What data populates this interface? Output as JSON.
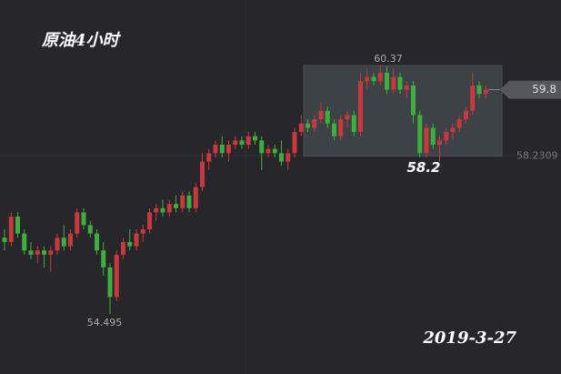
{
  "chart_data": {
    "type": "candlestick",
    "title": "原油4小时",
    "date": "2019-3-27",
    "up_color": "#c8383c",
    "down_color": "#3fae3f",
    "ylim": [
      53.08,
      61.92
    ],
    "high_label": 60.37,
    "low_label": 54.495,
    "box_low_label": 58.2,
    "range_low": 58.2309,
    "last_price": 59.8,
    "ohlc": [
      [
        56.3,
        56.5,
        56.0,
        56.2
      ],
      [
        56.2,
        56.9,
        56.1,
        56.8
      ],
      [
        56.8,
        56.9,
        56.3,
        56.4
      ],
      [
        56.4,
        56.5,
        55.9,
        56.0
      ],
      [
        56.0,
        56.2,
        55.8,
        55.9
      ],
      [
        55.9,
        56.1,
        55.7,
        56.0
      ],
      [
        56.0,
        56.1,
        55.6,
        55.9
      ],
      [
        55.9,
        56.1,
        55.5,
        56.0
      ],
      [
        56.0,
        56.4,
        55.9,
        56.3
      ],
      [
        56.3,
        56.6,
        56.0,
        56.1
      ],
      [
        56.1,
        56.5,
        56.0,
        56.4
      ],
      [
        56.4,
        57.0,
        56.3,
        56.9
      ],
      [
        56.9,
        57.0,
        56.5,
        56.6
      ],
      [
        56.6,
        56.7,
        56.3,
        56.4
      ],
      [
        56.4,
        56.5,
        55.9,
        56.0
      ],
      [
        56.0,
        56.2,
        55.4,
        55.6
      ],
      [
        55.6,
        55.7,
        54.495,
        54.9
      ],
      [
        54.9,
        56.0,
        54.8,
        55.9
      ],
      [
        55.9,
        56.3,
        55.8,
        56.2
      ],
      [
        56.2,
        56.5,
        56.0,
        56.1
      ],
      [
        56.1,
        56.5,
        56.0,
        56.4
      ],
      [
        56.4,
        56.6,
        56.2,
        56.5
      ],
      [
        56.5,
        57.0,
        56.4,
        56.9
      ],
      [
        56.9,
        57.1,
        56.7,
        57.0
      ],
      [
        57.0,
        57.2,
        56.8,
        56.9
      ],
      [
        56.9,
        57.2,
        56.8,
        57.1
      ],
      [
        57.1,
        57.3,
        56.9,
        57.0
      ],
      [
        57.0,
        57.4,
        56.9,
        57.3
      ],
      [
        57.3,
        57.4,
        56.9,
        57.0
      ],
      [
        57.0,
        57.6,
        56.9,
        57.5
      ],
      [
        57.5,
        58.3,
        57.4,
        58.1
      ],
      [
        58.1,
        58.4,
        57.9,
        58.3
      ],
      [
        58.3,
        58.6,
        58.2,
        58.5
      ],
      [
        58.5,
        58.7,
        58.2,
        58.3
      ],
      [
        58.3,
        58.6,
        58.1,
        58.5
      ],
      [
        58.5,
        58.7,
        58.4,
        58.6
      ],
      [
        58.6,
        58.7,
        58.4,
        58.5
      ],
      [
        58.5,
        58.8,
        58.4,
        58.7
      ],
      [
        58.7,
        58.8,
        58.5,
        58.6
      ],
      [
        58.6,
        58.7,
        57.9,
        58.3
      ],
      [
        58.3,
        58.5,
        58.2,
        58.4
      ],
      [
        58.4,
        58.5,
        58.2,
        58.3
      ],
      [
        58.3,
        58.6,
        58.0,
        58.1
      ],
      [
        58.1,
        58.4,
        57.9,
        58.3
      ],
      [
        58.3,
        58.9,
        58.2,
        58.8
      ],
      [
        58.8,
        59.2,
        58.7,
        59.0
      ],
      [
        59.0,
        59.1,
        58.8,
        58.9
      ],
      [
        58.9,
        59.2,
        58.8,
        59.1
      ],
      [
        59.1,
        59.5,
        59.0,
        59.3
      ],
      [
        59.3,
        59.4,
        58.9,
        59.0
      ],
      [
        59.0,
        59.1,
        58.6,
        58.7
      ],
      [
        58.7,
        59.2,
        58.6,
        59.1
      ],
      [
        59.1,
        59.3,
        58.9,
        59.2
      ],
      [
        59.2,
        59.3,
        58.7,
        58.8
      ],
      [
        58.8,
        60.2,
        58.7,
        60.0
      ],
      [
        60.0,
        60.3,
        59.8,
        60.1
      ],
      [
        60.1,
        60.2,
        59.9,
        60.0
      ],
      [
        60.0,
        60.37,
        59.9,
        60.2
      ],
      [
        60.2,
        60.35,
        59.7,
        59.8
      ],
      [
        59.8,
        60.3,
        59.7,
        60.1
      ],
      [
        60.1,
        60.2,
        59.7,
        59.8
      ],
      [
        59.8,
        60.0,
        59.6,
        59.9
      ],
      [
        59.9,
        60.0,
        59.0,
        59.2
      ],
      [
        59.2,
        59.3,
        58.2,
        58.3
      ],
      [
        58.3,
        59.0,
        58.2,
        58.9
      ],
      [
        58.9,
        59.0,
        58.4,
        58.5
      ],
      [
        58.5,
        58.7,
        58.1,
        58.6
      ],
      [
        58.6,
        58.9,
        58.5,
        58.8
      ],
      [
        58.8,
        59.0,
        58.6,
        58.9
      ],
      [
        58.9,
        59.2,
        58.8,
        59.1
      ],
      [
        59.1,
        59.4,
        59.0,
        59.3
      ],
      [
        59.3,
        60.2,
        59.2,
        59.9
      ],
      [
        59.9,
        60.0,
        59.6,
        59.7
      ],
      [
        59.7,
        59.9,
        59.6,
        59.8
      ]
    ]
  }
}
